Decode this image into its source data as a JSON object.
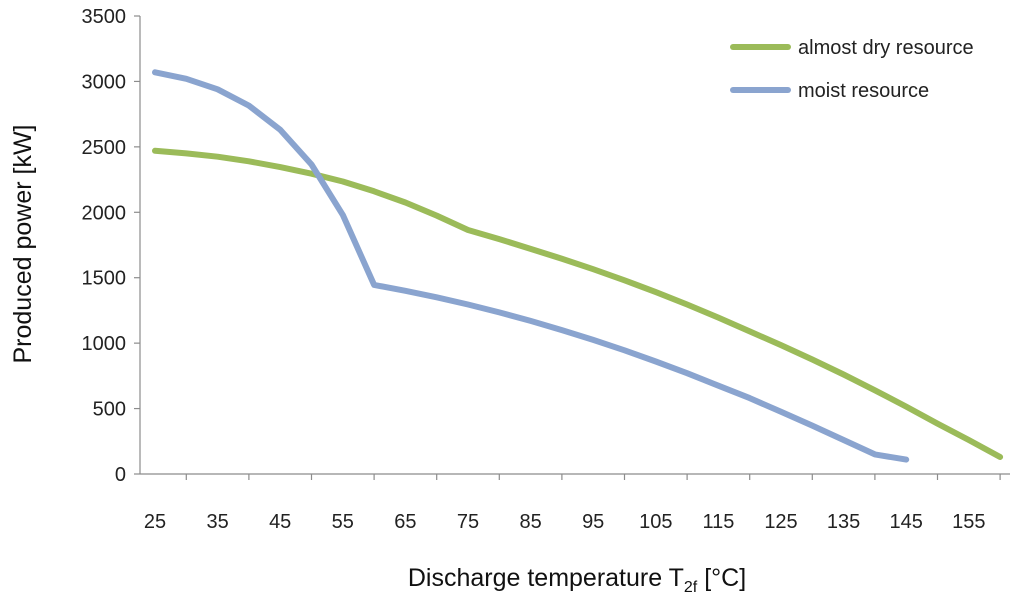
{
  "chart_data": {
    "type": "line",
    "title": "",
    "xlabel_main": "Discharge temperature T",
    "xlabel_sub": "2f",
    "xlabel_units": " [°C]",
    "ylabel": "Produced power [kW]",
    "ylim": [
      0,
      3500
    ],
    "yticks": [
      0,
      500,
      1000,
      1500,
      2000,
      2500,
      3000,
      3500
    ],
    "ytick_labels": [
      "0",
      "500",
      "1000",
      "1500",
      "2000",
      "2500",
      "3000",
      "3500"
    ],
    "xlim": [
      25,
      160
    ],
    "xticks": [
      25,
      35,
      45,
      55,
      65,
      75,
      85,
      95,
      105,
      115,
      125,
      135,
      145,
      155
    ],
    "xtick_labels": [
      "25",
      "35",
      "45",
      "55",
      "65",
      "75",
      "85",
      "95",
      "105",
      "115",
      "125",
      "135",
      "145",
      "155"
    ],
    "legend_position": "top-right",
    "grid": false,
    "series": [
      {
        "name": "almost dry resource",
        "color": "#9bbb59",
        "x": [
          25,
          30,
          35,
          40,
          45,
          50,
          55,
          60,
          65,
          70,
          75,
          80,
          85,
          90,
          95,
          100,
          105,
          110,
          115,
          120,
          125,
          130,
          135,
          140,
          145,
          150,
          155,
          160
        ],
        "y": [
          2470,
          2450,
          2425,
          2390,
          2345,
          2295,
          2235,
          2160,
          2075,
          1975,
          1865,
          1795,
          1720,
          1645,
          1565,
          1480,
          1390,
          1295,
          1195,
          1090,
          985,
          875,
          760,
          640,
          515,
          385,
          260,
          130
        ]
      },
      {
        "name": "moist resource",
        "color": "#8aa4cf",
        "x": [
          25,
          30,
          35,
          40,
          45,
          50,
          55,
          60,
          65,
          70,
          75,
          80,
          85,
          90,
          95,
          100,
          105,
          110,
          115,
          120,
          125,
          130,
          135,
          140,
          145
        ],
        "y": [
          3070,
          3020,
          2940,
          2815,
          2630,
          2365,
          1980,
          1445,
          1400,
          1350,
          1295,
          1235,
          1170,
          1100,
          1025,
          945,
          860,
          770,
          675,
          580,
          475,
          370,
          260,
          150,
          110
        ]
      }
    ]
  }
}
